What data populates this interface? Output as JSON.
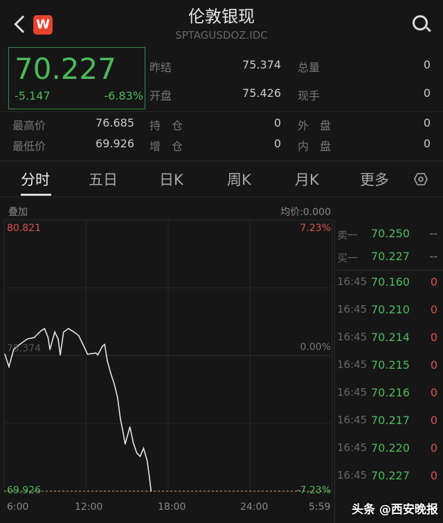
{
  "header": {
    "title": "伦敦银现",
    "code": "SPTAGUSDOZ.IDC",
    "logo_text": "W",
    "icons": [
      "back-icon",
      "app-logo",
      "search-icon"
    ]
  },
  "quote": {
    "price": "70.227",
    "change": "-5.147",
    "change_pct": "-6.83%",
    "fields": [
      {
        "label": "昨结",
        "value": "75.374"
      },
      {
        "label": "总量",
        "value": "0"
      },
      {
        "label": "开盘",
        "value": "75.426"
      },
      {
        "label": "现手",
        "value": "0"
      },
      {
        "label": "最高价",
        "value": "76.685"
      },
      {
        "label": "持　仓",
        "value": "0"
      },
      {
        "label": "外　盘",
        "value": "0"
      },
      {
        "label": "最低价",
        "value": "69.926"
      },
      {
        "label": "增　仓",
        "value": "0"
      },
      {
        "label": "内　盘",
        "value": "0"
      }
    ]
  },
  "tabs": [
    {
      "label": "分时",
      "active": true
    },
    {
      "label": "五日"
    },
    {
      "label": "日K"
    },
    {
      "label": "周K"
    },
    {
      "label": "月K"
    },
    {
      "label": "更多"
    }
  ],
  "chart_header": {
    "overlay": "叠加",
    "avg_price": "均价:0.000"
  },
  "colors": {
    "up": "#d9534f",
    "down": "#4cbb5c",
    "line": "#e6e6e6"
  },
  "chart_data": {
    "type": "line",
    "y_top_label": "80.821",
    "y_top_pct": "7.23%",
    "y_mid_label": "75.374",
    "y_mid_pct": "0.00%",
    "y_bottom_label": "69.926",
    "y_bottom_pct": "-7.23%",
    "ylim": [
      69.926,
      80.821
    ],
    "x_ticks": [
      "6:00",
      "12:00",
      "18:00",
      "24:00",
      "5:59"
    ],
    "series": [
      {
        "x": [
          "6:03",
          "6:21",
          "6:42",
          "7:12",
          "7:42",
          "8:12",
          "8:42",
          "8:57",
          "9:12",
          "9:21",
          "9:42",
          "9:57",
          "10:06",
          "10:21",
          "10:42",
          "11:06",
          "11:27",
          "11:42",
          "12:06",
          "12:42",
          "12:51",
          "13:12",
          "13:21",
          "13:33",
          "13:48",
          "14:03",
          "14:18",
          "14:30",
          "14:42",
          "14:51",
          "15:12",
          "15:27",
          "15:42",
          "15:57",
          "16:12",
          "16:27",
          "16:36",
          "16:45"
        ],
        "y": [
          75.43,
          74.93,
          75.62,
          75.85,
          76.04,
          76.1,
          76.37,
          76.46,
          76.12,
          75.62,
          76.32,
          76.04,
          75.4,
          76.32,
          76.46,
          76.32,
          76.18,
          75.9,
          75.43,
          75.48,
          75.4,
          75.76,
          75.82,
          75.15,
          74.65,
          74.24,
          73.68,
          72.84,
          72.29,
          71.82,
          72.51,
          71.87,
          71.46,
          71.32,
          71.65,
          71.18,
          70.62,
          69.93
        ]
      }
    ]
  },
  "order_book": [
    {
      "label": "卖一",
      "price": "70.250",
      "vol": "--"
    },
    {
      "label": "买一",
      "price": "70.227",
      "vol": "--"
    }
  ],
  "ticks": [
    {
      "time": "16:45",
      "price": "70.160",
      "vol": "0"
    },
    {
      "time": "16:45",
      "price": "70.210",
      "vol": "0"
    },
    {
      "time": "16:45",
      "price": "70.214",
      "vol": "0"
    },
    {
      "time": "16:45",
      "price": "70.215",
      "vol": "0"
    },
    {
      "time": "16:45",
      "price": "70.216",
      "vol": "0"
    },
    {
      "time": "16:45",
      "price": "70.217",
      "vol": "0"
    },
    {
      "time": "16:45",
      "price": "70.220",
      "vol": "0"
    },
    {
      "time": "16:45",
      "price": "70.227",
      "vol": "0"
    }
  ],
  "watermark": "头条 @西安晚报"
}
